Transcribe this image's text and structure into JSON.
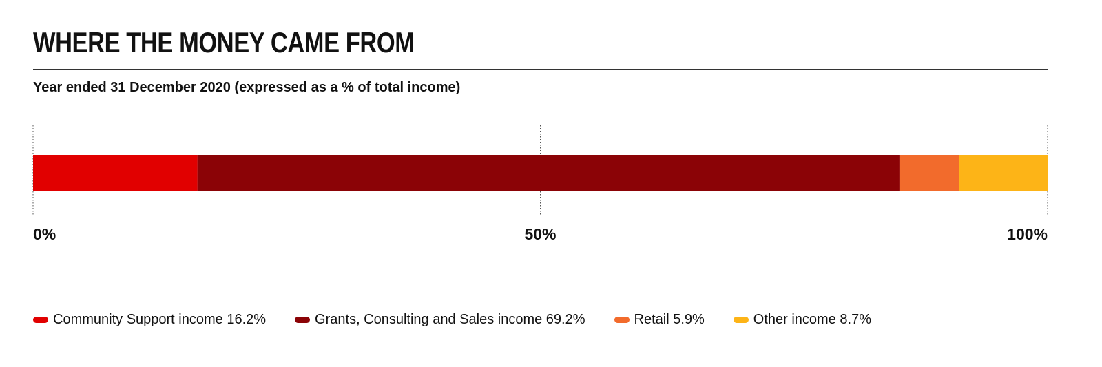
{
  "title": "WHERE THE MONEY CAME FROM",
  "subtitle": "Year ended 31 December 2020 (expressed as a % of total income)",
  "chart_data": {
    "type": "bar",
    "orientation": "horizontal-stacked",
    "xlim": [
      0,
      100
    ],
    "ticks": [
      {
        "value": 0,
        "label": "0%"
      },
      {
        "value": 50,
        "label": "50%"
      },
      {
        "value": 100,
        "label": "100%"
      }
    ],
    "grid": "dotted vertical at ticks",
    "legend_position": "bottom",
    "series": [
      {
        "name": "Community Support income",
        "value": 16.2,
        "color": "#e10000"
      },
      {
        "name": "Grants, Consulting and Sales income",
        "value": 69.2,
        "color": "#8b0306"
      },
      {
        "name": "Retail",
        "value": 5.9,
        "color": "#f26b2c"
      },
      {
        "name": "Other income",
        "value": 8.7,
        "color": "#fdb417"
      }
    ]
  },
  "legend": [
    {
      "label": "Community Support income 16.2%",
      "color": "#e10000"
    },
    {
      "label": "Grants, Consulting and Sales income 69.2%",
      "color": "#8b0306"
    },
    {
      "label": "Retail 5.9%",
      "color": "#f26b2c"
    },
    {
      "label": "Other income 8.7%",
      "color": "#fdb417"
    }
  ]
}
